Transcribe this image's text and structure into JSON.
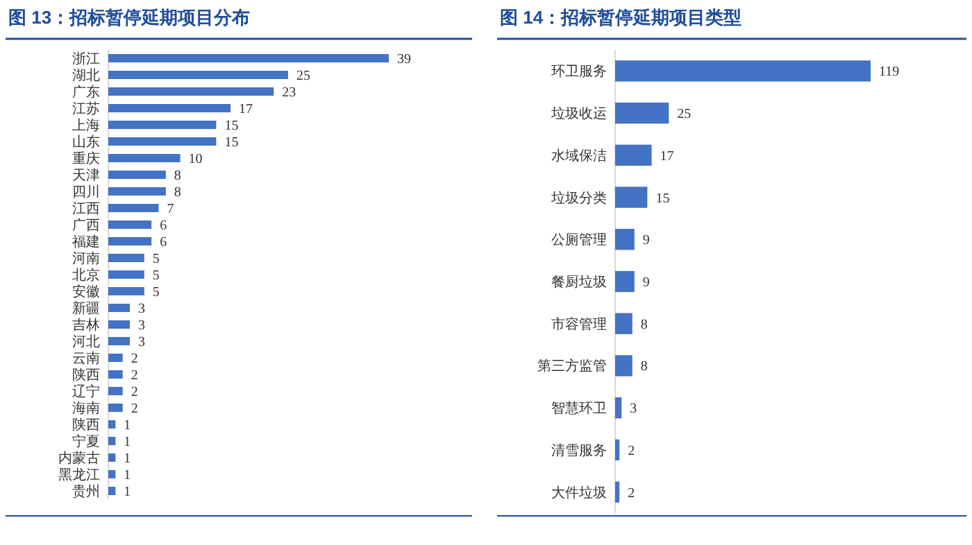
{
  "chart_data": [
    {
      "type": "bar",
      "orientation": "horizontal",
      "title": "图 13：招标暂停延期项目分布",
      "categories": [
        "浙江",
        "湖北",
        "广东",
        "江苏",
        "上海",
        "山东",
        "重庆",
        "天津",
        "四川",
        "江西",
        "广西",
        "福建",
        "河南",
        "北京",
        "安徽",
        "新疆",
        "吉林",
        "河北",
        "云南",
        "陕西",
        "辽宁",
        "海南",
        "陕西",
        "宁夏",
        "内蒙古",
        "黑龙江",
        "贵州"
      ],
      "values": [
        39,
        25,
        23,
        17,
        15,
        15,
        10,
        8,
        8,
        7,
        6,
        6,
        5,
        5,
        5,
        3,
        3,
        3,
        2,
        2,
        2,
        2,
        1,
        1,
        1,
        1,
        1
      ],
      "color": "#4472c4",
      "data_labels": true
    },
    {
      "type": "bar",
      "orientation": "horizontal",
      "title": "图 14：招标暂停延期项目类型",
      "categories": [
        "环卫服务",
        "垃圾收运",
        "水域保洁",
        "垃圾分类",
        "公厕管理",
        "餐厨垃圾",
        "市容管理",
        "第三方监管",
        "智慧环卫",
        "清雪服务",
        "大件垃圾"
      ],
      "values": [
        119,
        25,
        17,
        15,
        9,
        9,
        8,
        8,
        3,
        2,
        2
      ],
      "color": "#4472c4",
      "data_labels": true
    }
  ]
}
